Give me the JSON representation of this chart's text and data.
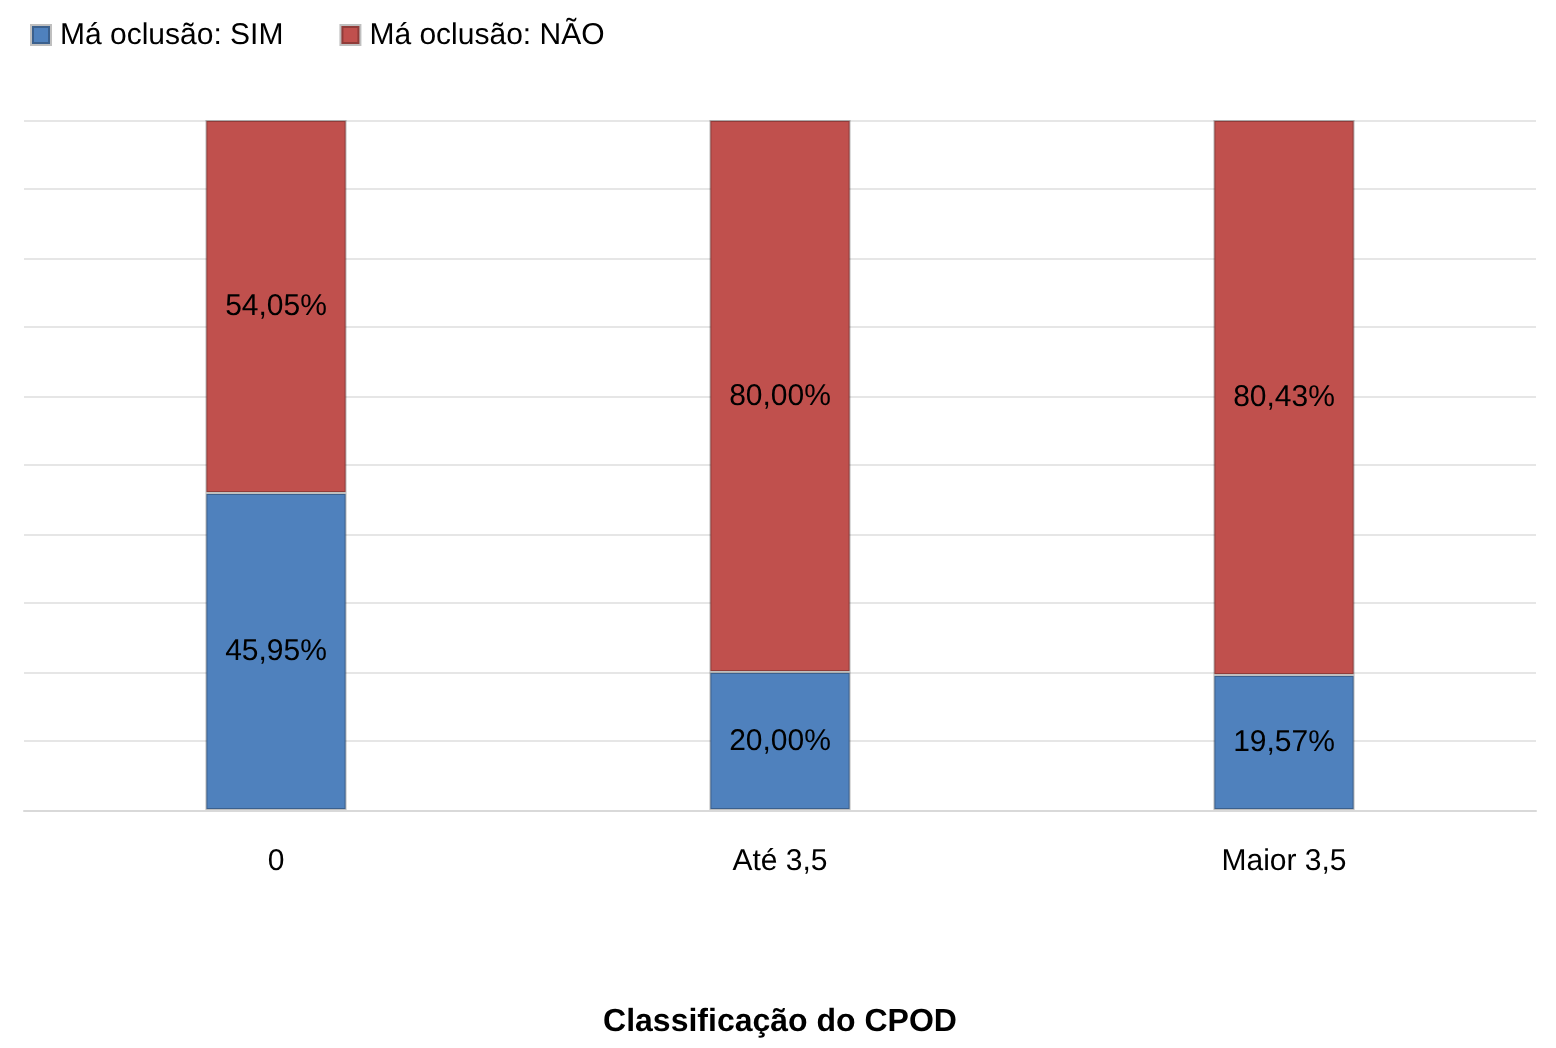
{
  "chart_data": {
    "type": "bar",
    "xlabel": "Classificação do CPOD",
    "categories": [
      "0",
      "Até 3,5",
      "Maior 3,5"
    ],
    "stacked": true,
    "series": [
      {
        "name": "Má oclusão: SIM",
        "color": "#4f81bd",
        "values": [
          45.95,
          20.0,
          19.57
        ],
        "value_labels": [
          "45,95%",
          "20,00%",
          "19,57%"
        ]
      },
      {
        "name": "Má oclusão: NÃO",
        "color": "#c0504d",
        "values": [
          54.05,
          80.0,
          80.43
        ],
        "value_labels": [
          "54,05%",
          "80,00%",
          "80,43%"
        ]
      }
    ],
    "ylim": [
      0,
      100
    ],
    "yticks": [
      {
        "value": 0,
        "label": null
      },
      {
        "value": 10,
        "label": null
      },
      {
        "value": 20,
        "label": null
      },
      {
        "value": 30,
        "label": null
      },
      {
        "value": 40,
        "label": null
      },
      {
        "value": 50,
        "label": null
      },
      {
        "value": 60,
        "label": null
      },
      {
        "value": 70,
        "label": null
      },
      {
        "value": 80,
        "label": null
      },
      {
        "value": 90,
        "label": null
      },
      {
        "value": 100,
        "label": null
      }
    ],
    "grid": "y",
    "legend": "top left",
    "tick_labels": "x"
  }
}
